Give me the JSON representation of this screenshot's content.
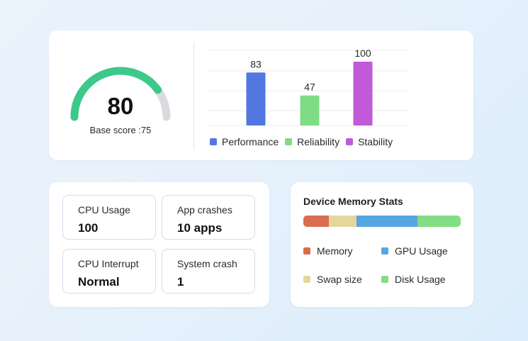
{
  "score": {
    "value": "80",
    "fraction": 0.8,
    "caption": "Base score :75",
    "colors": {
      "fill": "#3cc98a",
      "track": "#d9dadd"
    }
  },
  "chart_data": {
    "type": "bar",
    "categories": [
      "Performance",
      "Reliability",
      "Stability"
    ],
    "values": [
      83,
      47,
      100
    ],
    "value_labels": [
      "83",
      "47",
      "100"
    ],
    "colors": [
      "#5277e0",
      "#7ddc85",
      "#c259d9"
    ],
    "ylim": [
      0,
      100
    ],
    "grid": true,
    "legend": "bottom"
  },
  "stats": [
    {
      "label": "CPU Usage",
      "value": "100"
    },
    {
      "label": "App crashes",
      "value": "10 apps"
    },
    {
      "label": "CPU Interrupt",
      "value": "Normal"
    },
    {
      "label": "System crash",
      "value": "1"
    }
  ],
  "memory": {
    "title": "Device Memory Stats",
    "segments": [
      {
        "label": "Memory",
        "fraction": 0.16,
        "color": "#da6d4f"
      },
      {
        "label": "Swap size",
        "fraction": 0.18,
        "color": "#e4d69c"
      },
      {
        "label": "GPU Usage",
        "fraction": 0.385,
        "color": "#55a7e2"
      },
      {
        "label": "Disk Usage",
        "fraction": 0.275,
        "color": "#83dd84"
      }
    ],
    "legend": [
      {
        "label": "Memory",
        "color": "#da6d4f"
      },
      {
        "label": "GPU Usage",
        "color": "#55a7e2"
      },
      {
        "label": "Swap size",
        "color": "#e4d69c"
      },
      {
        "label": "Disk Usage",
        "color": "#83dd84"
      }
    ]
  }
}
